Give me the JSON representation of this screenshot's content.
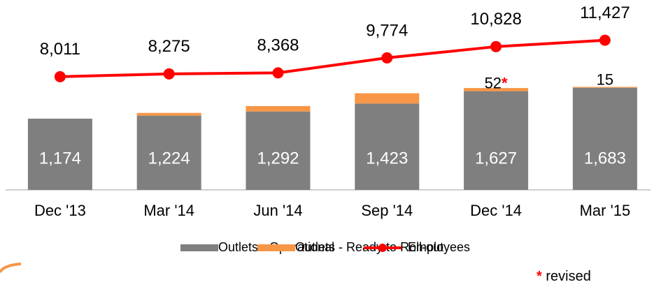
{
  "chart_data": {
    "type": "bar-line",
    "categories": [
      "Dec '13",
      "Mar '14",
      "Jun '14",
      "Sep '14",
      "Dec '14",
      "Mar '15"
    ],
    "series": [
      {
        "name": "Outlets - Operational",
        "color": "#7f7f7f",
        "values": [
          1174,
          1224,
          1292,
          1423,
          1627,
          1683
        ]
      },
      {
        "name": "Outlets - Ready to Roll-out",
        "color": "#f79646",
        "values": [
          0,
          45,
          90,
          170,
          52,
          15
        ],
        "value_labels": [
          null,
          null,
          null,
          null,
          "52*",
          "15"
        ]
      },
      {
        "name": "Employees",
        "color": "#ff0000",
        "axis": "y2",
        "values": [
          8011,
          8275,
          8368,
          9774,
          10828,
          11427
        ]
      }
    ],
    "ylim": [
      0,
      3130
    ],
    "y2lim": [
      -2600,
      15200
    ],
    "annotation": "* revised"
  }
}
